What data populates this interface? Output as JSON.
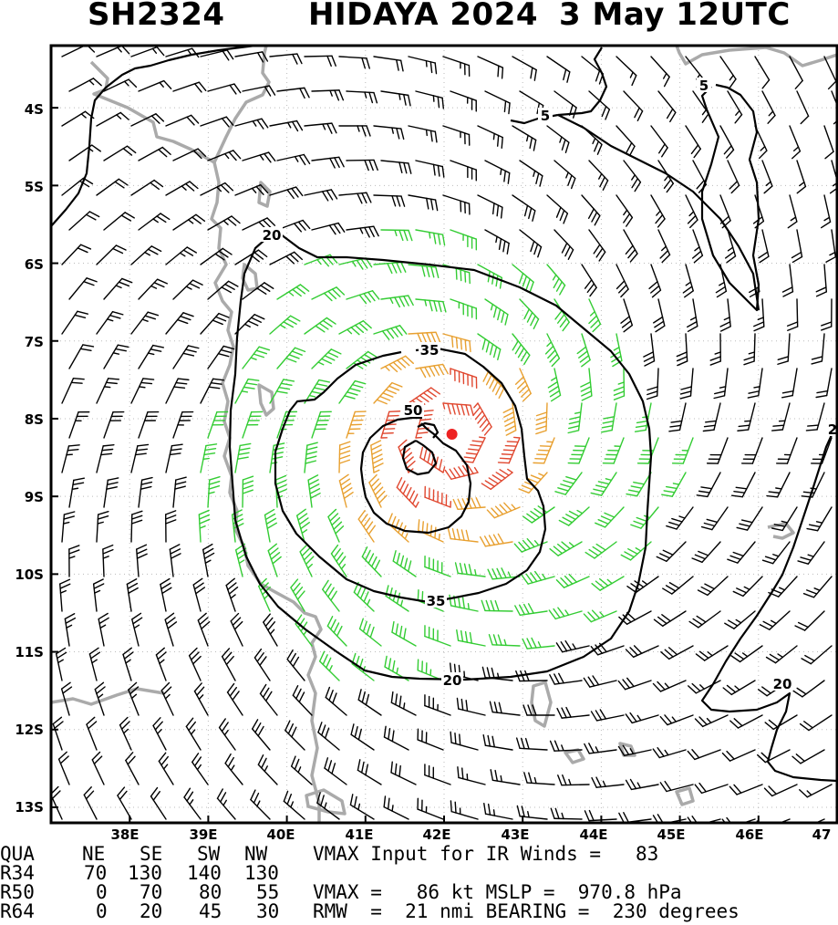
{
  "header": {
    "storm_id": "SH2324",
    "storm_name_year": "HIDAYA 2024",
    "datetime": "3 May 12UTC"
  },
  "map": {
    "lat_labels": [
      "4S",
      "5S",
      "6S",
      "7S",
      "8S",
      "9S",
      "10S",
      "11S",
      "12S",
      "13S"
    ],
    "lon_labels": [
      "38E",
      "39E",
      "40E",
      "41E",
      "42E",
      "43E",
      "44E",
      "45E",
      "46E",
      "47"
    ],
    "contour_labels": [
      "5",
      "5",
      "20",
      "35",
      "50",
      "35",
      "20",
      "20",
      "2"
    ],
    "storm_center": {
      "lon": 42.1,
      "lat": -8.2
    },
    "wind_colors": {
      "below_34kt": "#000000",
      "34_to_50kt": "#33cc33",
      "50_to_64kt": "#e8a030",
      "above_64kt": "#e04830"
    },
    "center_color": "#ee2222",
    "coastline_color": "#aaaaaa",
    "extent": {
      "lon_min": 37.0,
      "lon_max": 47.0,
      "lat_max": -3.2,
      "lat_min": -13.2
    }
  },
  "table": {
    "header": [
      "QUA",
      "NE",
      "SE",
      "SW",
      "NW"
    ],
    "rows": [
      {
        "label": "R34",
        "values": [
          "70",
          "130",
          "140",
          "130"
        ]
      },
      {
        "label": "R50",
        "values": [
          "0",
          "70",
          "80",
          "55"
        ]
      },
      {
        "label": "R64",
        "values": [
          "0",
          "20",
          "45",
          "30"
        ]
      }
    ]
  },
  "info": {
    "line1": "VMAX Input for IR Winds =   83",
    "line2": "VMAX =   86 kt MSLP =  970.8 hPa",
    "line3": "RMW  =  21 nmi BEARING =  230 degrees"
  }
}
